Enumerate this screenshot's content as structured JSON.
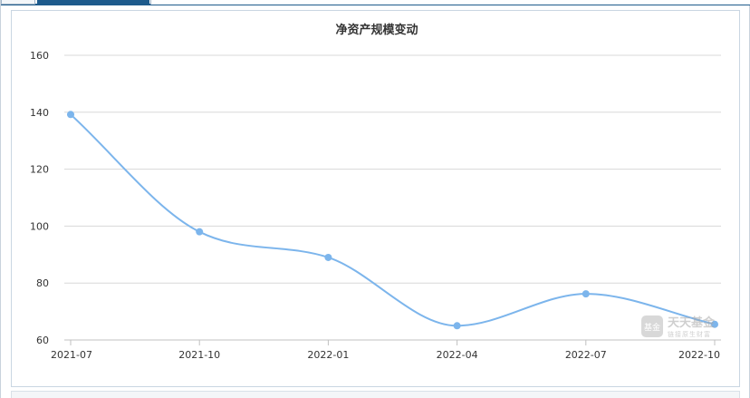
{
  "chart_data": {
    "type": "line",
    "title": "净资产规模变动",
    "xlabel": "",
    "ylabel": "",
    "categories": [
      "2021-07",
      "2021-10",
      "2022-01",
      "2022-04",
      "2022-07",
      "2022-10"
    ],
    "series": [
      {
        "values": [
          139.2,
          98.0,
          89.0,
          65.0,
          76.2,
          65.5
        ]
      }
    ],
    "y_ticks": [
      60,
      80,
      100,
      120,
      140,
      160
    ],
    "ylim": [
      60,
      160
    ],
    "grid": true,
    "smooth": true,
    "legend": "none"
  },
  "watermark": {
    "badge": "基金",
    "title": "天天基金",
    "subtitle": "链接原生财富"
  },
  "colors": {
    "line": "#7cb5ec",
    "grid": "#d8d8d8",
    "axis_text": "#333333",
    "accent": "#1e5b8c"
  }
}
